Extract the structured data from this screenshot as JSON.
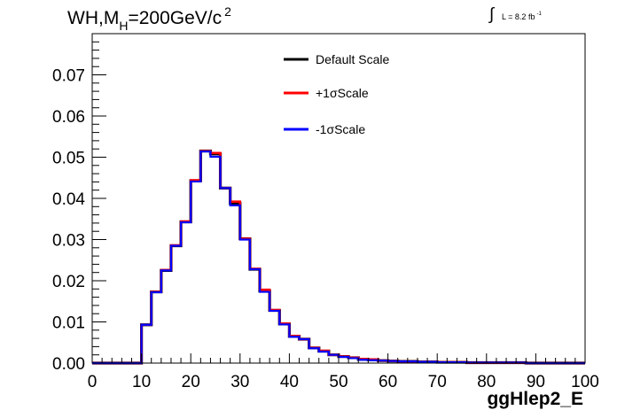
{
  "header": {
    "title_prefix": "WH,M",
    "title_sub": "H",
    "title_rest": "=200GeV/c",
    "title_sup": "2",
    "lumi_integral": "∫",
    "lumi_text": "L = 8.2 fb",
    "lumi_sup": "-1"
  },
  "chart_data": {
    "type": "line",
    "style": "step histogram",
    "title": "WH,M_H=200GeV/c^2",
    "xlabel": "ggHlep2_E",
    "ylabel": "",
    "xlim": [
      0,
      100
    ],
    "ylim": [
      0,
      0.08
    ],
    "x_ticks": [
      0,
      10,
      20,
      30,
      40,
      50,
      60,
      70,
      80,
      90,
      100
    ],
    "x_tick_labels": [
      "0",
      "10",
      "20",
      "30",
      "40",
      "50",
      "60",
      "70",
      "80",
      "90",
      "100"
    ],
    "y_ticks": [
      0,
      0.01,
      0.02,
      0.03,
      0.04,
      0.05,
      0.06,
      0.07
    ],
    "y_tick_labels": [
      "0.00",
      "0.01",
      "0.02",
      "0.03",
      "0.04",
      "0.05",
      "0.06",
      "0.07"
    ],
    "bin_edges": [
      0,
      2,
      4,
      6,
      8,
      10,
      12,
      14,
      16,
      18,
      20,
      22,
      24,
      26,
      28,
      30,
      32,
      34,
      36,
      38,
      40,
      42,
      44,
      46,
      48,
      50,
      52,
      54,
      56,
      58,
      60,
      62,
      64,
      66,
      68,
      70,
      72,
      74,
      76,
      78,
      80,
      82,
      84,
      86,
      88,
      90,
      92,
      94,
      96,
      98,
      100
    ],
    "grid": false,
    "legend_position": "top-center",
    "series": [
      {
        "name": "Default Scale",
        "color": "#000000",
        "values": [
          0,
          0,
          0,
          0,
          0,
          0.0093,
          0.0173,
          0.0225,
          0.0285,
          0.0343,
          0.0443,
          0.0515,
          0.0508,
          0.0425,
          0.0388,
          0.0302,
          0.0228,
          0.0175,
          0.0128,
          0.0095,
          0.0065,
          0.0058,
          0.0037,
          0.0029,
          0.002,
          0.0016,
          0.0013,
          0.0009,
          0.0008,
          0.0006,
          0.0005,
          0.0004,
          0.0004,
          0.0003,
          0.0003,
          0.0002,
          0.0002,
          0.0002,
          0.0001,
          0.0001,
          0.0001,
          0.0001,
          0.0001,
          0.0001,
          0,
          0,
          0,
          0,
          0,
          0
        ]
      },
      {
        "name": "+1σScale",
        "color": "#ff0000",
        "values": [
          0,
          0,
          0,
          0,
          0,
          0.0093,
          0.0173,
          0.0226,
          0.0286,
          0.0344,
          0.0444,
          0.0515,
          0.051,
          0.0425,
          0.0392,
          0.0302,
          0.0229,
          0.0178,
          0.0129,
          0.0096,
          0.0066,
          0.0058,
          0.0037,
          0.003,
          0.002,
          0.0016,
          0.0013,
          0.001,
          0.0009,
          0.0006,
          0.0005,
          0.0004,
          0.0004,
          0.0003,
          0.0003,
          0.0002,
          0.0002,
          0.0002,
          0.0001,
          0.0001,
          0.0001,
          0.0001,
          0.0001,
          0.0001,
          0,
          0,
          0,
          0,
          0,
          0
        ]
      },
      {
        "name": "-1σScale",
        "color": "#0000ff",
        "values": [
          0,
          0,
          0,
          0,
          0,
          0.0093,
          0.0172,
          0.0225,
          0.0285,
          0.0342,
          0.0441,
          0.0514,
          0.0501,
          0.0425,
          0.0383,
          0.03,
          0.0228,
          0.0173,
          0.0127,
          0.0094,
          0.0064,
          0.0058,
          0.0036,
          0.0028,
          0.002,
          0.0015,
          0.0012,
          0.0008,
          0.0007,
          0.0006,
          0.0005,
          0.0004,
          0.0004,
          0.0003,
          0.0003,
          0.0002,
          0.0002,
          0.0002,
          0.0001,
          0.0001,
          0.0001,
          0.0001,
          0.0001,
          0.0001,
          0,
          0,
          0,
          0,
          0,
          0
        ]
      }
    ]
  }
}
